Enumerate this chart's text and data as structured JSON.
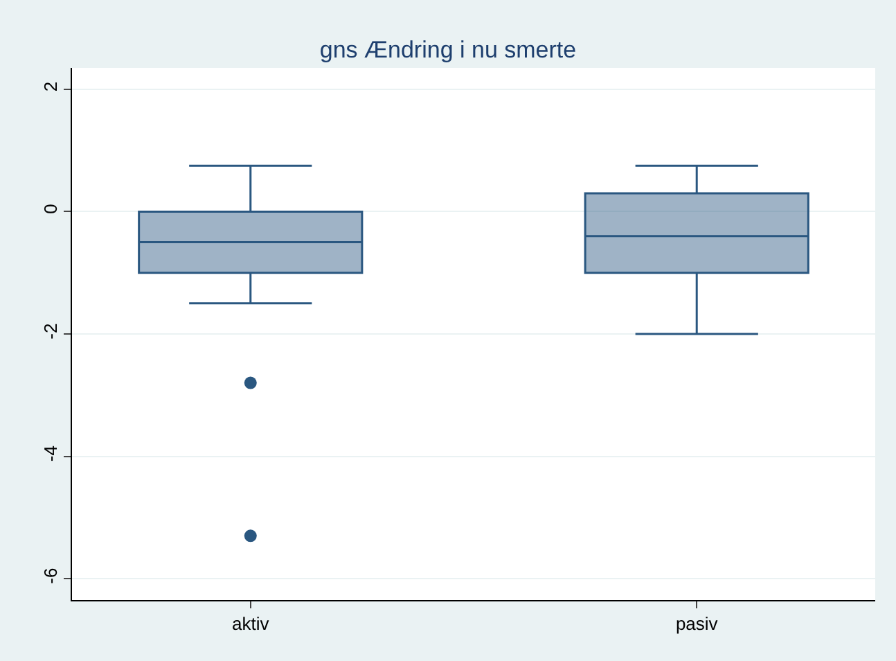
{
  "chart_data": {
    "type": "box",
    "title": "gns Ændring i nu smerte",
    "categories": [
      "aktiv",
      "pasiv"
    ],
    "boxes": [
      {
        "low": -1.5,
        "q1": -1,
        "median": -0.5,
        "q3": 0,
        "high": 0.75,
        "outliers": [
          -2.8,
          -5.3
        ]
      },
      {
        "low": -2,
        "q1": -1,
        "median": -0.4,
        "q3": 0.3,
        "high": 0.75
      }
    ],
    "color": "#2a5780",
    "ylim": [
      -6.35,
      2.35
    ],
    "yticks": [
      -6,
      -4,
      -2,
      0,
      2
    ],
    "grid": "y"
  }
}
